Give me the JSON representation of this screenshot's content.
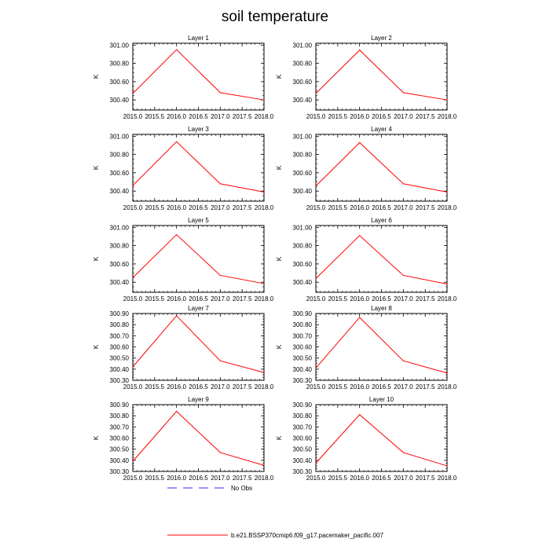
{
  "figure": {
    "title": "soil temperature"
  },
  "legend": {
    "items": [
      {
        "label": "No Obs",
        "style": "dashed",
        "color": "#2b2bff"
      },
      {
        "label": "b.e21.BSSP370cmip6.f09_g17.pacemaker_pacific.007",
        "style": "solid",
        "color": "#ff0000"
      }
    ]
  },
  "colors": {
    "series": "#ff0000",
    "axes": "#000000"
  },
  "chart_data": [
    {
      "type": "line",
      "title": "Layer 1",
      "ylabel": "K",
      "xlim": [
        2015.0,
        2018.0
      ],
      "ylim": [
        300.29,
        301.02
      ],
      "xticks": [
        "2015.0",
        "2015.5",
        "2016.0",
        "2016.5",
        "2017.0",
        "2017.5",
        "2018.0"
      ],
      "yticks": [
        "300.40",
        "300.60",
        "300.80",
        "301.00"
      ],
      "series": [
        {
          "name": "b.e21.BSSP370cmip6.f09_g17.pacemaker_pacific.007",
          "x": [
            2015,
            2016,
            2017,
            2018
          ],
          "y": [
            300.47,
            300.95,
            300.48,
            300.4
          ]
        }
      ]
    },
    {
      "type": "line",
      "title": "Layer 2",
      "ylabel": "K",
      "xlim": [
        2015.0,
        2018.0
      ],
      "ylim": [
        300.29,
        301.02
      ],
      "xticks": [
        "2015.0",
        "2015.5",
        "2016.0",
        "2016.5",
        "2017.0",
        "2017.5",
        "2018.0"
      ],
      "yticks": [
        "300.40",
        "300.60",
        "300.80",
        "301.00"
      ],
      "series": [
        {
          "name": "b.e21.BSSP370cmip6.f09_g17.pacemaker_pacific.007",
          "x": [
            2015,
            2016,
            2017,
            2018
          ],
          "y": [
            300.47,
            300.945,
            300.48,
            300.4
          ]
        }
      ]
    },
    {
      "type": "line",
      "title": "Layer 3",
      "ylabel": "K",
      "xlim": [
        2015.0,
        2018.0
      ],
      "ylim": [
        300.29,
        301.02
      ],
      "xticks": [
        "2015.0",
        "2015.5",
        "2016.0",
        "2016.5",
        "2017.0",
        "2017.5",
        "2018.0"
      ],
      "yticks": [
        "300.40",
        "300.60",
        "300.80",
        "301.00"
      ],
      "series": [
        {
          "name": "b.e21.BSSP370cmip6.f09_g17.pacemaker_pacific.007",
          "x": [
            2015,
            2016,
            2017,
            2018
          ],
          "y": [
            300.46,
            300.94,
            300.48,
            300.39
          ]
        }
      ]
    },
    {
      "type": "line",
      "title": "Layer 4",
      "ylabel": "K",
      "xlim": [
        2015.0,
        2018.0
      ],
      "ylim": [
        300.29,
        301.02
      ],
      "xticks": [
        "2015.0",
        "2015.5",
        "2016.0",
        "2016.5",
        "2017.0",
        "2017.5",
        "2018.0"
      ],
      "yticks": [
        "300.40",
        "300.60",
        "300.80",
        "301.00"
      ],
      "series": [
        {
          "name": "b.e21.BSSP370cmip6.f09_g17.pacemaker_pacific.007",
          "x": [
            2015,
            2016,
            2017,
            2018
          ],
          "y": [
            300.455,
            300.93,
            300.48,
            300.39
          ]
        }
      ]
    },
    {
      "type": "line",
      "title": "Layer 5",
      "ylabel": "K",
      "xlim": [
        2015.0,
        2018.0
      ],
      "ylim": [
        300.29,
        301.02
      ],
      "xticks": [
        "2015.0",
        "2015.5",
        "2016.0",
        "2016.5",
        "2017.0",
        "2017.5",
        "2018.0"
      ],
      "yticks": [
        "300.40",
        "300.60",
        "300.80",
        "301.00"
      ],
      "series": [
        {
          "name": "b.e21.BSSP370cmip6.f09_g17.pacemaker_pacific.007",
          "x": [
            2015,
            2016,
            2017,
            2018
          ],
          "y": [
            300.45,
            300.92,
            300.475,
            300.385
          ]
        }
      ]
    },
    {
      "type": "line",
      "title": "Layer 6",
      "ylabel": "K",
      "xlim": [
        2015.0,
        2018.0
      ],
      "ylim": [
        300.29,
        301.02
      ],
      "xticks": [
        "2015.0",
        "2015.5",
        "2016.0",
        "2016.5",
        "2017.0",
        "2017.5",
        "2018.0"
      ],
      "yticks": [
        "300.40",
        "300.60",
        "300.80",
        "301.00"
      ],
      "series": [
        {
          "name": "b.e21.BSSP370cmip6.f09_g17.pacemaker_pacific.007",
          "x": [
            2015,
            2016,
            2017,
            2018
          ],
          "y": [
            300.44,
            300.91,
            300.475,
            300.38
          ]
        }
      ]
    },
    {
      "type": "line",
      "title": "Layer 7",
      "ylabel": "K",
      "xlim": [
        2015.0,
        2018.0
      ],
      "ylim": [
        300.3,
        300.9
      ],
      "xticks": [
        "2015.0",
        "2015.5",
        "2016.0",
        "2016.5",
        "2017.0",
        "2017.5",
        "2018.0"
      ],
      "yticks": [
        "300.30",
        "300.40",
        "300.50",
        "300.60",
        "300.70",
        "300.80",
        "300.90"
      ],
      "series": [
        {
          "name": "b.e21.BSSP370cmip6.f09_g17.pacemaker_pacific.007",
          "x": [
            2015,
            2016,
            2017,
            2018
          ],
          "y": [
            300.42,
            300.88,
            300.475,
            300.37
          ]
        }
      ]
    },
    {
      "type": "line",
      "title": "Layer 8",
      "ylabel": "K",
      "xlim": [
        2015.0,
        2018.0
      ],
      "ylim": [
        300.3,
        300.9
      ],
      "xticks": [
        "2015.0",
        "2015.5",
        "2016.0",
        "2016.5",
        "2017.0",
        "2017.5",
        "2018.0"
      ],
      "yticks": [
        "300.30",
        "300.40",
        "300.50",
        "300.60",
        "300.70",
        "300.80",
        "300.90"
      ],
      "series": [
        {
          "name": "b.e21.BSSP370cmip6.f09_g17.pacemaker_pacific.007",
          "x": [
            2015,
            2016,
            2017,
            2018
          ],
          "y": [
            300.41,
            300.865,
            300.475,
            300.365
          ]
        }
      ]
    },
    {
      "type": "line",
      "title": "Layer 9",
      "ylabel": "K",
      "xlim": [
        2015.0,
        2018.0
      ],
      "ylim": [
        300.3,
        300.9
      ],
      "xticks": [
        "2015.0",
        "2015.5",
        "2016.0",
        "2016.5",
        "2017.0",
        "2017.5",
        "2018.0"
      ],
      "yticks": [
        "300.30",
        "300.40",
        "300.50",
        "300.60",
        "300.70",
        "300.80",
        "300.90"
      ],
      "series": [
        {
          "name": "b.e21.BSSP370cmip6.f09_g17.pacemaker_pacific.007",
          "x": [
            2015,
            2016,
            2017,
            2018
          ],
          "y": [
            300.39,
            300.84,
            300.47,
            300.355
          ]
        }
      ]
    },
    {
      "type": "line",
      "title": "Layer 10",
      "ylabel": "K",
      "xlim": [
        2015.0,
        2018.0
      ],
      "ylim": [
        300.3,
        300.9
      ],
      "xticks": [
        "2015.0",
        "2015.5",
        "2016.0",
        "2016.5",
        "2017.0",
        "2017.5",
        "2018.0"
      ],
      "yticks": [
        "300.30",
        "300.40",
        "300.50",
        "300.60",
        "300.70",
        "300.80",
        "300.90"
      ],
      "series": [
        {
          "name": "b.e21.BSSP370cmip6.f09_g17.pacemaker_pacific.007",
          "x": [
            2015,
            2016,
            2017,
            2018
          ],
          "y": [
            300.375,
            300.81,
            300.47,
            300.35
          ]
        }
      ]
    }
  ]
}
